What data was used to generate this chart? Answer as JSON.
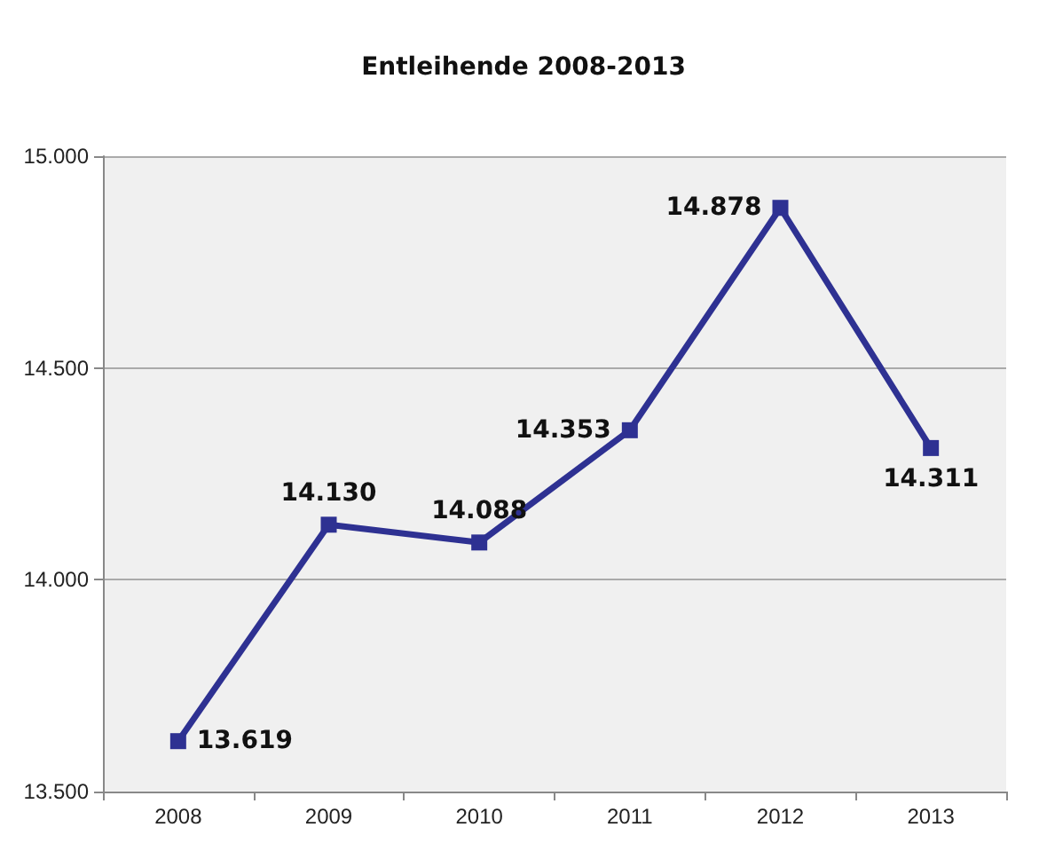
{
  "chart_data": {
    "type": "line",
    "title": "Entleihende 2008-2013",
    "categories": [
      "2008",
      "2009",
      "2010",
      "2011",
      "2012",
      "2013"
    ],
    "series": [
      {
        "color": "#2e3192",
        "values": [
          13619,
          14130,
          14088,
          14353,
          14878,
          14311
        ],
        "value_labels": [
          "13.619",
          "14.130",
          "14.088",
          "14.353",
          "14.878",
          "14.311"
        ]
      }
    ],
    "ylim": [
      13500,
      15000
    ],
    "yticks": [
      {
        "value": 13500,
        "label": "13.500"
      },
      {
        "value": 14000,
        "label": "14.000"
      },
      {
        "value": 14500,
        "label": "14.500"
      },
      {
        "value": 15000,
        "label": "15.000"
      }
    ],
    "grid": "y",
    "marker": "square",
    "line_style": "solid"
  }
}
